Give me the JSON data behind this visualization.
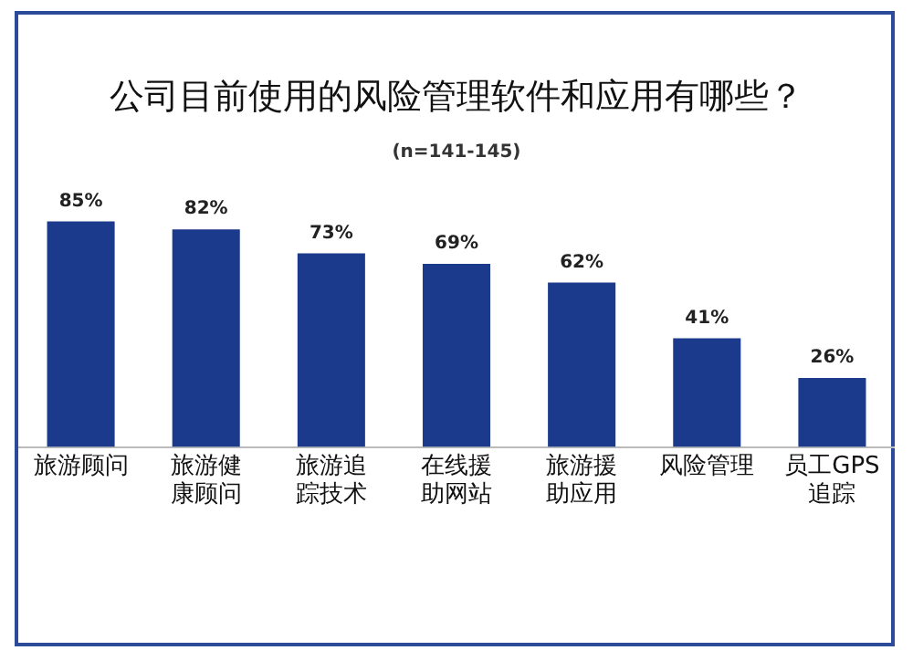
{
  "chart_data": {
    "type": "bar",
    "title": "公司目前使用的风险管理软件和应用有哪些？",
    "subtitle": "(n=141-145)",
    "categories": [
      "旅游顾问",
      "旅游健康顾问",
      "旅游追踪技术",
      "在线援助网站",
      "旅游援助应用",
      "风险管理",
      "员工GPS追踪"
    ],
    "values": [
      85,
      82,
      73,
      69,
      62,
      41,
      26
    ],
    "value_labels": [
      "85%",
      "82%",
      "73%",
      "69%",
      "62%",
      "41%",
      "26%"
    ],
    "color": "#1c3a8c",
    "grid": false,
    "legend": false,
    "tick_labels": "x"
  }
}
